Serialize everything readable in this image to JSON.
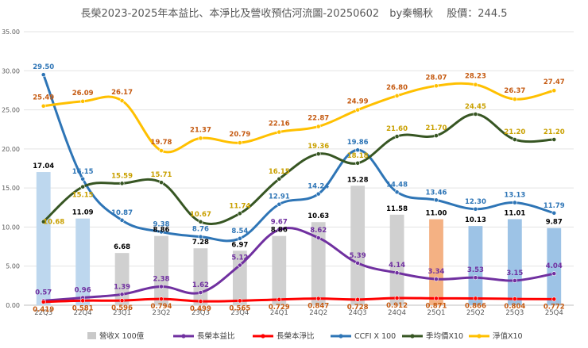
{
  "chart_data": {
    "type": "line",
    "title": "長榮2023-2025年本益比、本淨比及營收預估河流圖-20250602　by秦暢秋　 股價：244.5",
    "xlabel": "",
    "ylabel": "",
    "ylim": [
      0,
      35
    ],
    "yticks": [
      "0.00",
      "5.00",
      "10.00",
      "15.00",
      "20.00",
      "25.00",
      "30.00",
      "35.00"
    ],
    "grid": true,
    "legend_position": "bottom",
    "categories": [
      "22Q3",
      "22Q4",
      "23Q1",
      "23Q2",
      "23Q3",
      "23Q4",
      "24Q1",
      "24Q2",
      "24Q3",
      "24Q4",
      "25Q1",
      "25Q2",
      "25Q3",
      "25Q4"
    ],
    "series": [
      {
        "name": "營收X 100億",
        "kind": "bar",
        "color": "#c9c9c9",
        "bar_colors": [
          "#bdd7ee",
          "#bdd7ee",
          "#d0d0d0",
          "#d0d0d0",
          "#d0d0d0",
          "#d0d0d0",
          "#d0d0d0",
          "#d0d0d0",
          "#d0d0d0",
          "#d0d0d0",
          "#f4b183",
          "#9dc3e6",
          "#9dc3e6",
          "#9dc3e6"
        ],
        "values": [
          17.04,
          11.09,
          6.68,
          8.86,
          7.28,
          6.97,
          8.86,
          10.63,
          15.28,
          11.58,
          11.0,
          10.13,
          11.01,
          9.87
        ],
        "label_color": "#000000",
        "labels": [
          "17.04",
          "11.09",
          "6.68",
          "8.86",
          "7.28",
          "6.97",
          "8.86",
          "10.63",
          "15.28",
          "11.58",
          "11.00",
          "10.13",
          "11.01",
          "9.87"
        ]
      },
      {
        "name": "長榮本益比",
        "kind": "line",
        "color": "#7030a0",
        "values": [
          0.57,
          0.96,
          1.39,
          2.38,
          1.62,
          5.12,
          9.67,
          8.62,
          5.39,
          4.14,
          3.34,
          3.53,
          3.15,
          4.04
        ],
        "labels": [
          "0.57",
          "0.96",
          "1.39",
          "2.38",
          "1.62",
          "5.12",
          "9.67",
          "8.62",
          "5.39",
          "4.14",
          "3.34",
          "3.53",
          "3.15",
          "4.04"
        ]
      },
      {
        "name": "長榮本淨比",
        "kind": "line",
        "color": "#ff0000",
        "values": [
          0.419,
          0.581,
          0.596,
          0.794,
          0.499,
          0.565,
          0.729,
          0.847,
          0.728,
          0.912,
          0.871,
          0.866,
          0.804,
          0.772
        ],
        "label_color": "#c55a11",
        "labels": [
          "0.419",
          "0.581",
          "0.596",
          "0.794",
          "0.499",
          "0.565",
          "0.729",
          "0.847",
          "0.728",
          "0.912",
          "0.871",
          "0.866",
          "0.804",
          "0.772"
        ]
      },
      {
        "name": "CCFI X 100",
        "kind": "line",
        "color": "#2e75b6",
        "values": [
          29.5,
          16.15,
          10.87,
          9.38,
          8.76,
          8.54,
          12.91,
          14.24,
          19.86,
          14.48,
          13.46,
          12.3,
          13.13,
          11.79
        ],
        "labels": [
          "29.50",
          "16.15",
          "10.87",
          "9.38",
          "8.76",
          "8.54",
          "12.91",
          "14.24",
          "19.86",
          "14.48",
          "13.46",
          "12.30",
          "13.13",
          "11.79"
        ]
      },
      {
        "name": "季均價X10",
        "kind": "line",
        "color": "#375623",
        "values": [
          10.68,
          15.15,
          15.59,
          15.71,
          10.67,
          11.74,
          16.15,
          19.36,
          18.18,
          21.6,
          21.7,
          24.45,
          21.2,
          21.2
        ],
        "label_color": "#c9a000",
        "labels": [
          "10.68",
          "15.15",
          "15.59",
          "15.71",
          "10.67",
          "11.74",
          "16.15",
          "19.36",
          "18.18",
          "21.60",
          "21.70",
          "24.45",
          "21.20",
          "21.20"
        ]
      },
      {
        "name": "淨值X10",
        "kind": "line",
        "color": "#ffc000",
        "values": [
          25.49,
          26.09,
          26.17,
          19.78,
          21.37,
          20.79,
          22.16,
          22.87,
          24.99,
          26.8,
          28.07,
          28.23,
          26.37,
          27.47
        ],
        "label_color": "#c55a11",
        "labels": [
          "25.49",
          "26.09",
          "26.17",
          "19.78",
          "21.37",
          "20.79",
          "22.16",
          "22.87",
          "24.99",
          "26.80",
          "28.07",
          "28.23",
          "26.37",
          "27.47"
        ]
      }
    ]
  }
}
